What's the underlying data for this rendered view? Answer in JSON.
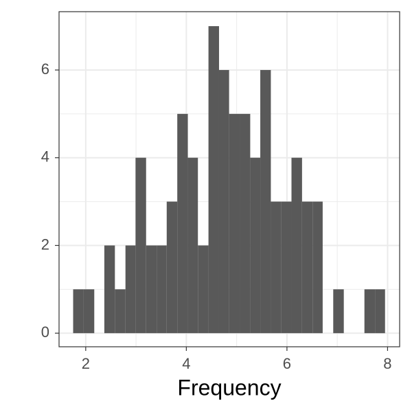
{
  "chart_data": {
    "type": "histogram",
    "x_label": "Frequency",
    "bins": [
      1.75,
      1.96,
      2.17,
      2.37,
      2.58,
      2.79,
      2.99,
      3.2,
      3.41,
      3.61,
      3.82,
      4.03,
      4.23,
      4.44,
      4.65,
      4.85,
      5.06,
      5.27,
      5.47,
      5.68,
      5.89,
      6.09,
      6.3,
      6.51,
      6.71,
      6.92,
      7.13,
      7.33,
      7.54,
      7.75,
      7.95
    ],
    "values": [
      1,
      1,
      0,
      2,
      1,
      2,
      4,
      2,
      2,
      3,
      5,
      4,
      2,
      7,
      6,
      5,
      5,
      4,
      6,
      3,
      3,
      4,
      3,
      3,
      0,
      1,
      0,
      0,
      1,
      1
    ],
    "color": "#595959",
    "xlim": [
      1.47,
      8.24
    ],
    "ylim": [
      -0.31,
      7.33
    ],
    "xticks": [
      2,
      4,
      6,
      8
    ],
    "yticks": [
      0,
      2,
      4,
      6
    ],
    "grid": true,
    "minor_grid": true
  }
}
